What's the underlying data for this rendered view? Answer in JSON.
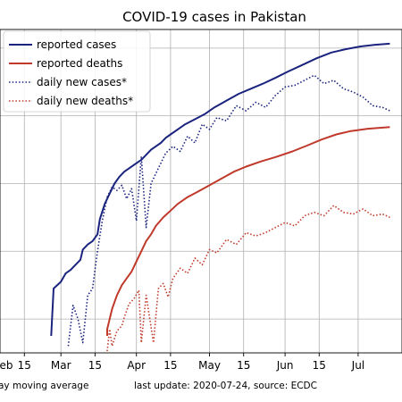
{
  "chart_data": {
    "type": "line",
    "title": "COVID-19 cases in Pakistan",
    "xlabel": "",
    "ylabel": "",
    "y_scale": "log",
    "y_tick_labels": "not visible",
    "grid": true,
    "legend_position": "top-left",
    "x_ticks": [
      {
        "date": "2020-02-15",
        "label": "15"
      },
      {
        "date": "2020-03-01",
        "label": "Mar"
      },
      {
        "date": "2020-03-15",
        "label": "15"
      },
      {
        "date": "2020-04-01",
        "label": "Apr"
      },
      {
        "date": "2020-04-15",
        "label": "15"
      },
      {
        "date": "2020-05-01",
        "label": "May"
      },
      {
        "date": "2020-05-15",
        "label": "15"
      },
      {
        "date": "2020-06-01",
        "label": "Jun"
      },
      {
        "date": "2020-06-15",
        "label": "15"
      },
      {
        "date": "2020-07-01",
        "label": "Jul"
      }
    ],
    "left_edge_label": "eb",
    "series": [
      {
        "name": "reported cases",
        "color": "#1a237e",
        "style": "solid",
        "points": [
          [
            "2020-02-26",
            0.5
          ],
          [
            "2020-02-27",
            1.9
          ],
          [
            "2020-03-01",
            2.1
          ],
          [
            "2020-03-03",
            2.35
          ],
          [
            "2020-03-05",
            2.45
          ],
          [
            "2020-03-07",
            2.6
          ],
          [
            "2020-03-09",
            2.75
          ],
          [
            "2020-03-10",
            3.05
          ],
          [
            "2020-03-12",
            3.2
          ],
          [
            "2020-03-14",
            3.3
          ],
          [
            "2020-03-16",
            3.5
          ],
          [
            "2020-03-17",
            3.95
          ],
          [
            "2020-03-19",
            4.4
          ],
          [
            "2020-03-21",
            4.7
          ],
          [
            "2020-03-23",
            5.0
          ],
          [
            "2020-03-25",
            5.2
          ],
          [
            "2020-03-27",
            5.35
          ],
          [
            "2020-03-29",
            5.45
          ],
          [
            "2020-04-01",
            5.6
          ],
          [
            "2020-04-03",
            5.7
          ],
          [
            "2020-04-05",
            5.85
          ],
          [
            "2020-04-07",
            6.0
          ],
          [
            "2020-04-09",
            6.1
          ],
          [
            "2020-04-11",
            6.2
          ],
          [
            "2020-04-13",
            6.35
          ],
          [
            "2020-04-15",
            6.45
          ],
          [
            "2020-04-18",
            6.6
          ],
          [
            "2020-04-21",
            6.75
          ],
          [
            "2020-04-25",
            6.9
          ],
          [
            "2020-04-29",
            7.05
          ],
          [
            "2020-05-03",
            7.25
          ],
          [
            "2020-05-08",
            7.45
          ],
          [
            "2020-05-13",
            7.65
          ],
          [
            "2020-05-18",
            7.8
          ],
          [
            "2020-05-23",
            7.95
          ],
          [
            "2020-05-28",
            8.12
          ],
          [
            "2020-06-02",
            8.3
          ],
          [
            "2020-06-08",
            8.5
          ],
          [
            "2020-06-14",
            8.7
          ],
          [
            "2020-06-20",
            8.87
          ],
          [
            "2020-06-26",
            8.97
          ],
          [
            "2020-07-02",
            9.05
          ],
          [
            "2020-07-08",
            9.1
          ],
          [
            "2020-07-14",
            9.13
          ]
        ]
      },
      {
        "name": "reported deaths",
        "color": "#c0392b",
        "style": "solid",
        "points": [
          [
            "2020-03-20",
            0.5
          ],
          [
            "2020-03-20",
            0.7
          ],
          [
            "2020-03-22",
            1.3
          ],
          [
            "2020-03-24",
            1.7
          ],
          [
            "2020-03-26",
            2.0
          ],
          [
            "2020-03-28",
            2.2
          ],
          [
            "2020-03-30",
            2.4
          ],
          [
            "2020-04-01",
            2.7
          ],
          [
            "2020-04-03",
            3.0
          ],
          [
            "2020-04-05",
            3.3
          ],
          [
            "2020-04-07",
            3.5
          ],
          [
            "2020-04-09",
            3.75
          ],
          [
            "2020-04-12",
            4.0
          ],
          [
            "2020-04-15",
            4.2
          ],
          [
            "2020-04-18",
            4.4
          ],
          [
            "2020-04-22",
            4.6
          ],
          [
            "2020-04-26",
            4.75
          ],
          [
            "2020-05-01",
            4.95
          ],
          [
            "2020-05-06",
            5.15
          ],
          [
            "2020-05-11",
            5.35
          ],
          [
            "2020-05-16",
            5.5
          ],
          [
            "2020-05-22",
            5.65
          ],
          [
            "2020-05-28",
            5.78
          ],
          [
            "2020-06-04",
            5.95
          ],
          [
            "2020-06-10",
            6.12
          ],
          [
            "2020-06-16",
            6.3
          ],
          [
            "2020-06-22",
            6.45
          ],
          [
            "2020-06-28",
            6.55
          ],
          [
            "2020-07-05",
            6.62
          ],
          [
            "2020-07-14",
            6.67
          ]
        ]
      },
      {
        "name": "daily new cases*",
        "color": "#1a237e",
        "style": "dotted",
        "points": [
          [
            "2020-03-04",
            0.2
          ],
          [
            "2020-03-06",
            1.4
          ],
          [
            "2020-03-08",
            1.0
          ],
          [
            "2020-03-10",
            0.3
          ],
          [
            "2020-03-12",
            1.7
          ],
          [
            "2020-03-14",
            1.9
          ],
          [
            "2020-03-16",
            3.0
          ],
          [
            "2020-03-18",
            3.9
          ],
          [
            "2020-03-20",
            4.6
          ],
          [
            "2020-03-22",
            4.9
          ],
          [
            "2020-03-24",
            4.8
          ],
          [
            "2020-03-26",
            4.95
          ],
          [
            "2020-03-28",
            4.55
          ],
          [
            "2020-03-30",
            4.85
          ],
          [
            "2020-04-01",
            3.9
          ],
          [
            "2020-04-03",
            5.8
          ],
          [
            "2020-04-05",
            3.7
          ],
          [
            "2020-04-07",
            5.0
          ],
          [
            "2020-04-09",
            5.3
          ],
          [
            "2020-04-11",
            5.6
          ],
          [
            "2020-04-13",
            5.9
          ],
          [
            "2020-04-16",
            6.1
          ],
          [
            "2020-04-19",
            5.95
          ],
          [
            "2020-04-22",
            6.4
          ],
          [
            "2020-04-25",
            6.2
          ],
          [
            "2020-04-28",
            6.75
          ],
          [
            "2020-05-01",
            6.6
          ],
          [
            "2020-05-04",
            6.95
          ],
          [
            "2020-05-08",
            6.85
          ],
          [
            "2020-05-12",
            7.3
          ],
          [
            "2020-05-16",
            7.15
          ],
          [
            "2020-05-20",
            7.4
          ],
          [
            "2020-05-24",
            7.25
          ],
          [
            "2020-05-28",
            7.6
          ],
          [
            "2020-06-01",
            7.85
          ],
          [
            "2020-06-05",
            7.9
          ],
          [
            "2020-06-09",
            8.05
          ],
          [
            "2020-06-13",
            8.2
          ],
          [
            "2020-06-17",
            7.95
          ],
          [
            "2020-06-21",
            8.05
          ],
          [
            "2020-06-25",
            7.8
          ],
          [
            "2020-06-29",
            7.7
          ],
          [
            "2020-07-03",
            7.55
          ],
          [
            "2020-07-07",
            7.3
          ],
          [
            "2020-07-11",
            7.25
          ],
          [
            "2020-07-14",
            7.15
          ]
        ]
      },
      {
        "name": "daily new deaths*",
        "color": "#c0392b",
        "style": "dotted",
        "points": [
          [
            "2020-03-20",
            0.05
          ],
          [
            "2020-03-21",
            0.7
          ],
          [
            "2020-03-22",
            0.2
          ],
          [
            "2020-03-24",
            0.65
          ],
          [
            "2020-03-26",
            0.8
          ],
          [
            "2020-03-27",
            1.05
          ],
          [
            "2020-03-29",
            1.45
          ],
          [
            "2020-03-31",
            1.6
          ],
          [
            "2020-04-02",
            1.85
          ],
          [
            "2020-04-03",
            0.3
          ],
          [
            "2020-04-05",
            1.7
          ],
          [
            "2020-04-08",
            0.3
          ],
          [
            "2020-04-10",
            1.9
          ],
          [
            "2020-04-12",
            2.05
          ],
          [
            "2020-04-14",
            1.65
          ],
          [
            "2020-04-16",
            2.2
          ],
          [
            "2020-04-19",
            2.5
          ],
          [
            "2020-04-22",
            2.35
          ],
          [
            "2020-04-25",
            2.8
          ],
          [
            "2020-04-28",
            2.6
          ],
          [
            "2020-05-01",
            3.05
          ],
          [
            "2020-05-04",
            2.95
          ],
          [
            "2020-05-08",
            3.35
          ],
          [
            "2020-05-12",
            3.2
          ],
          [
            "2020-05-16",
            3.55
          ],
          [
            "2020-05-20",
            3.45
          ],
          [
            "2020-05-24",
            3.55
          ],
          [
            "2020-05-28",
            3.7
          ],
          [
            "2020-06-01",
            3.85
          ],
          [
            "2020-06-05",
            3.75
          ],
          [
            "2020-06-09",
            4.05
          ],
          [
            "2020-06-13",
            4.15
          ],
          [
            "2020-06-17",
            4.05
          ],
          [
            "2020-06-21",
            4.35
          ],
          [
            "2020-06-25",
            4.15
          ],
          [
            "2020-06-29",
            4.1
          ],
          [
            "2020-07-03",
            4.25
          ],
          [
            "2020-07-07",
            4.05
          ],
          [
            "2020-07-11",
            4.1
          ],
          [
            "2020-07-14",
            4.0
          ]
        ]
      }
    ]
  },
  "footnotes": {
    "left": "ay moving average",
    "right": "last update: 2020-07-24, source: ECDC"
  }
}
